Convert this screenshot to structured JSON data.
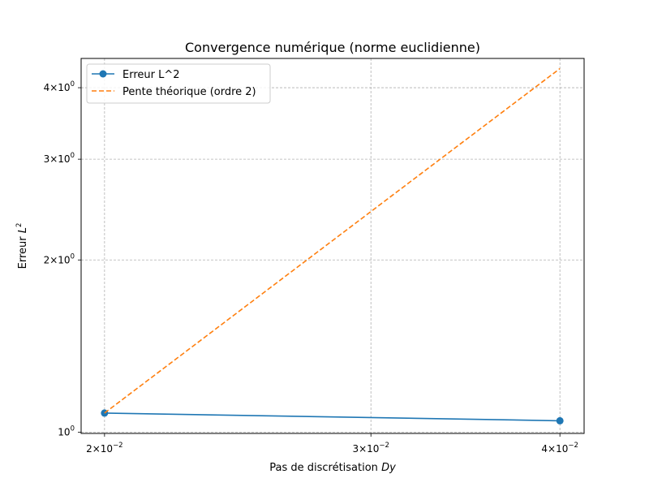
{
  "chart_data": {
    "type": "line",
    "title": "Convergence numérique (norme euclidienne)",
    "xlabel": "Pas de discrétisation",
    "xlabel_math": "Dy",
    "ylabel": "Erreur",
    "ylabel_math": "L",
    "ylabel_exp": "2",
    "xscale": "log",
    "yscale": "log",
    "xlim": [
      0.0193,
      0.0415
    ],
    "ylim": [
      0.995,
      4.5
    ],
    "grid": true,
    "legend_position": "upper left",
    "x_ticks": [
      {
        "value": 0.02,
        "mantissa": "2",
        "exp": "−2"
      },
      {
        "value": 0.03,
        "mantissa": "3",
        "exp": "−2"
      },
      {
        "value": 0.04,
        "mantissa": "4",
        "exp": "−2"
      }
    ],
    "y_ticks": [
      {
        "value": 1,
        "mantissa": "",
        "base": "10",
        "exp": "0"
      },
      {
        "value": 2,
        "mantissa": "2",
        "base": "10",
        "exp": "0"
      },
      {
        "value": 3,
        "mantissa": "3",
        "base": "10",
        "exp": "0"
      },
      {
        "value": 4,
        "mantissa": "4",
        "base": "10",
        "exp": "0"
      }
    ],
    "series": [
      {
        "name": "Erreur L^2",
        "x": [
          0.02,
          0.04
        ],
        "y": [
          1.08,
          1.047
        ],
        "color": "#1f77b4",
        "style": "solid",
        "marker": "circle"
      },
      {
        "name": "Pente théorique (ordre 2)",
        "x": [
          0.02,
          0.04
        ],
        "y": [
          1.08,
          4.32
        ],
        "color": "#ff7f0e",
        "style": "dashed",
        "marker": "none"
      }
    ]
  }
}
